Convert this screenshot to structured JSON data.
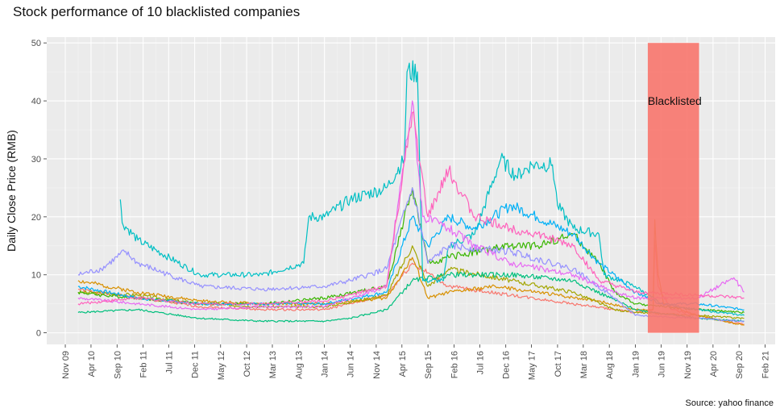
{
  "chart_data": {
    "type": "line",
    "title": "Stock performance of 10 blacklisted companies",
    "ylabel": "Daily Close Price (RMB)",
    "xlabel": "",
    "caption": "Source: yahoo finance",
    "ylim": [
      -2,
      51
    ],
    "yticks": [
      0,
      10,
      20,
      30,
      40,
      50
    ],
    "xlim": [
      "2009-07-15",
      "2021-04-01"
    ],
    "xticks": [
      {
        "label": "Nov 09",
        "date": "2009-11-01"
      },
      {
        "label": "Apr 10",
        "date": "2010-04-01"
      },
      {
        "label": "Sep 10",
        "date": "2010-09-01"
      },
      {
        "label": "Feb 11",
        "date": "2011-02-01"
      },
      {
        "label": "Jul 11",
        "date": "2011-07-01"
      },
      {
        "label": "Dec 11",
        "date": "2011-12-01"
      },
      {
        "label": "May 12",
        "date": "2012-05-01"
      },
      {
        "label": "Oct 12",
        "date": "2012-10-01"
      },
      {
        "label": "Mar 13",
        "date": "2013-03-01"
      },
      {
        "label": "Aug 13",
        "date": "2013-08-01"
      },
      {
        "label": "Jan 14",
        "date": "2014-01-01"
      },
      {
        "label": "Jun 14",
        "date": "2014-06-01"
      },
      {
        "label": "Nov 14",
        "date": "2014-11-01"
      },
      {
        "label": "Apr 15",
        "date": "2015-04-01"
      },
      {
        "label": "Sep 15",
        "date": "2015-09-01"
      },
      {
        "label": "Feb 16",
        "date": "2016-02-01"
      },
      {
        "label": "Jul 16",
        "date": "2016-07-01"
      },
      {
        "label": "Dec 16",
        "date": "2016-12-01"
      },
      {
        "label": "May 17",
        "date": "2017-05-01"
      },
      {
        "label": "Oct 17",
        "date": "2017-10-01"
      },
      {
        "label": "Mar 18",
        "date": "2018-03-01"
      },
      {
        "label": "Aug 18",
        "date": "2018-08-01"
      },
      {
        "label": "Jan 19",
        "date": "2019-01-01"
      },
      {
        "label": "Jun 19",
        "date": "2019-06-01"
      },
      {
        "label": "Nov 19",
        "date": "2019-11-01"
      },
      {
        "label": "Apr 20",
        "date": "2020-04-01"
      },
      {
        "label": "Sep 20",
        "date": "2020-09-01"
      },
      {
        "label": "Feb 21",
        "date": "2021-02-01"
      }
    ],
    "grid": true,
    "legend": "none",
    "annotation": {
      "label": "Blacklisted",
      "x_start": "2019-03-15",
      "x_end": "2020-01-10",
      "y_start": 0,
      "y_end": 50,
      "label_y": 40,
      "color": "#f8766d"
    },
    "series": [
      {
        "color": "#f8766d",
        "points": [
          [
            "2010-01-15",
            7.5
          ],
          [
            "2011-01-01",
            6.0
          ],
          [
            "2012-01-01",
            4.5
          ],
          [
            "2013-01-01",
            4.0
          ],
          [
            "2014-01-01",
            4.0
          ],
          [
            "2015-01-01",
            6.5
          ],
          [
            "2015-06-01",
            12.0
          ],
          [
            "2016-01-01",
            8.0
          ],
          [
            "2017-01-01",
            6.5
          ],
          [
            "2018-01-01",
            5.0
          ],
          [
            "2019-01-01",
            3.5
          ],
          [
            "2019-04-15",
            4.0
          ],
          [
            "2019-04-25",
            16.0
          ],
          [
            "2019-05-15",
            8.0
          ],
          [
            "2019-08-01",
            4.0
          ],
          [
            "2020-01-01",
            3.0
          ],
          [
            "2020-06-01",
            2.0
          ],
          [
            "2020-10-01",
            1.5
          ]
        ]
      },
      {
        "color": "#d89000",
        "points": [
          [
            "2010-01-15",
            9.0
          ],
          [
            "2011-01-01",
            7.0
          ],
          [
            "2012-01-01",
            5.5
          ],
          [
            "2013-01-01",
            5.0
          ],
          [
            "2014-01-01",
            5.0
          ],
          [
            "2015-01-01",
            6.0
          ],
          [
            "2015-06-01",
            13.0
          ],
          [
            "2015-09-01",
            6.0
          ],
          [
            "2016-01-01",
            7.0
          ],
          [
            "2016-10-01",
            8.0
          ],
          [
            "2017-06-01",
            7.0
          ],
          [
            "2018-06-01",
            5.5
          ],
          [
            "2019-01-01",
            4.0
          ],
          [
            "2019-04-15",
            4.0
          ],
          [
            "2019-04-25",
            19.5
          ],
          [
            "2019-05-01",
            16.0
          ],
          [
            "2019-05-15",
            10.0
          ],
          [
            "2019-06-15",
            5.0
          ],
          [
            "2020-01-01",
            3.0
          ],
          [
            "2020-10-01",
            1.3
          ]
        ]
      },
      {
        "color": "#a3a500",
        "points": [
          [
            "2010-01-15",
            7.0
          ],
          [
            "2011-01-01",
            6.5
          ],
          [
            "2012-01-01",
            5.0
          ],
          [
            "2013-01-01",
            4.5
          ],
          [
            "2014-01-01",
            4.5
          ],
          [
            "2015-01-01",
            6.5
          ],
          [
            "2015-06-01",
            15.0
          ],
          [
            "2015-09-01",
            8.0
          ],
          [
            "2016-01-01",
            11.0
          ],
          [
            "2017-01-01",
            9.0
          ],
          [
            "2018-01-01",
            7.0
          ],
          [
            "2018-09-01",
            4.0
          ],
          [
            "2019-01-01",
            3.5
          ],
          [
            "2020-01-01",
            3.0
          ],
          [
            "2020-10-01",
            2.5
          ]
        ]
      },
      {
        "color": "#39b600",
        "points": [
          [
            "2010-01-15",
            7.0
          ],
          [
            "2010-06-01",
            6.5
          ],
          [
            "2011-01-01",
            6.0
          ],
          [
            "2012-01-01",
            5.0
          ],
          [
            "2013-01-01",
            5.0
          ],
          [
            "2014-01-01",
            6.0
          ],
          [
            "2015-01-01",
            8.0
          ],
          [
            "2015-06-01",
            25.0
          ],
          [
            "2015-09-01",
            12.0
          ],
          [
            "2016-01-01",
            13.0
          ],
          [
            "2016-06-01",
            14.0
          ],
          [
            "2017-01-01",
            15.0
          ],
          [
            "2017-06-01",
            15.0
          ],
          [
            "2018-01-01",
            17.0
          ],
          [
            "2018-06-01",
            12.0
          ],
          [
            "2018-09-01",
            7.0
          ],
          [
            "2019-01-01",
            5.0
          ],
          [
            "2020-01-01",
            4.0
          ],
          [
            "2020-10-01",
            3.5
          ]
        ]
      },
      {
        "color": "#00bf7d",
        "points": [
          [
            "2010-01-15",
            3.5
          ],
          [
            "2011-01-01",
            4.0
          ],
          [
            "2012-01-01",
            2.5
          ],
          [
            "2013-01-01",
            2.0
          ],
          [
            "2014-01-01",
            2.0
          ],
          [
            "2014-06-01",
            2.5
          ],
          [
            "2015-01-01",
            4.0
          ],
          [
            "2015-06-01",
            9.0
          ],
          [
            "2016-01-01",
            10.0
          ],
          [
            "2017-01-01",
            10.0
          ],
          [
            "2018-01-01",
            9.0
          ],
          [
            "2019-01-01",
            4.0
          ],
          [
            "2020-01-01",
            2.5
          ],
          [
            "2020-10-01",
            2.0
          ]
        ]
      },
      {
        "color": "#00bfc4",
        "points": [
          [
            "2010-09-20",
            23.0
          ],
          [
            "2010-10-01",
            19.0
          ],
          [
            "2011-01-01",
            16.0
          ],
          [
            "2012-01-01",
            10.0
          ],
          [
            "2012-06-01",
            10.0
          ],
          [
            "2013-01-01",
            10.0
          ],
          [
            "2013-09-01",
            12.0
          ],
          [
            "2013-10-01",
            20.0
          ],
          [
            "2014-01-01",
            20.0
          ],
          [
            "2014-06-01",
            23.0
          ],
          [
            "2015-01-01",
            25.0
          ],
          [
            "2015-04-15",
            30.0
          ],
          [
            "2015-05-01",
            45.0
          ],
          [
            "2015-07-01",
            45.0
          ],
          [
            "2015-08-01",
            9.0
          ],
          [
            "2015-12-01",
            9.0
          ],
          [
            "2016-01-01",
            15.0
          ],
          [
            "2016-06-01",
            17.0
          ],
          [
            "2016-11-01",
            30.0
          ],
          [
            "2017-02-01",
            27.0
          ],
          [
            "2017-05-01",
            29.0
          ],
          [
            "2017-09-01",
            29.0
          ],
          [
            "2017-10-01",
            22.0
          ],
          [
            "2018-01-01",
            18.0
          ],
          [
            "2018-06-01",
            17.0
          ],
          [
            "2018-07-01",
            10.0
          ],
          [
            "2019-01-01",
            8.0
          ],
          [
            "2019-06-01",
            5.0
          ],
          [
            "2020-01-01",
            4.0
          ],
          [
            "2020-10-01",
            3.0
          ]
        ]
      },
      {
        "color": "#00b0f6",
        "points": [
          [
            "2010-01-15",
            8.0
          ],
          [
            "2011-01-01",
            6.0
          ],
          [
            "2012-01-01",
            5.0
          ],
          [
            "2013-01-01",
            5.0
          ],
          [
            "2014-01-01",
            5.0
          ],
          [
            "2015-01-01",
            7.0
          ],
          [
            "2015-06-01",
            20.0
          ],
          [
            "2015-09-01",
            15.0
          ],
          [
            "2016-01-01",
            20.0
          ],
          [
            "2016-06-01",
            18.0
          ],
          [
            "2017-01-01",
            22.0
          ],
          [
            "2017-06-01",
            20.0
          ],
          [
            "2018-01-01",
            17.0
          ],
          [
            "2018-06-01",
            12.0
          ],
          [
            "2019-01-01",
            7.0
          ],
          [
            "2019-06-01",
            5.0
          ],
          [
            "2020-01-01",
            5.0
          ],
          [
            "2020-10-01",
            4.0
          ]
        ]
      },
      {
        "color": "#9590ff",
        "points": [
          [
            "2010-01-15",
            10.0
          ],
          [
            "2010-06-01",
            11.0
          ],
          [
            "2010-10-15",
            14.0
          ],
          [
            "2011-01-01",
            12.0
          ],
          [
            "2012-01-01",
            8.0
          ],
          [
            "2013-01-01",
            7.5
          ],
          [
            "2014-01-01",
            8.0
          ],
          [
            "2014-06-01",
            9.0
          ],
          [
            "2015-01-01",
            11.0
          ],
          [
            "2015-06-01",
            25.0
          ],
          [
            "2015-09-01",
            12.0
          ],
          [
            "2016-01-01",
            15.0
          ],
          [
            "2017-01-01",
            14.0
          ],
          [
            "2018-01-01",
            11.0
          ],
          [
            "2018-09-01",
            6.0
          ],
          [
            "2019-01-01",
            3.0
          ],
          [
            "2020-01-01",
            2.5
          ],
          [
            "2020-10-01",
            2.0
          ]
        ]
      },
      {
        "color": "#e76bf3",
        "points": [
          [
            "2010-01-15",
            6.0
          ],
          [
            "2011-01-01",
            5.0
          ],
          [
            "2012-01-01",
            4.0
          ],
          [
            "2013-01-01",
            4.5
          ],
          [
            "2014-01-01",
            4.5
          ],
          [
            "2015-01-01",
            8.0
          ],
          [
            "2015-06-01",
            40.0
          ],
          [
            "2015-08-01",
            20.0
          ],
          [
            "2016-01-01",
            18.0
          ],
          [
            "2016-06-01",
            15.0
          ],
          [
            "2017-01-01",
            12.0
          ],
          [
            "2018-01-01",
            10.0
          ],
          [
            "2018-09-01",
            7.0
          ],
          [
            "2019-01-01",
            6.0
          ],
          [
            "2020-01-01",
            6.0
          ],
          [
            "2020-08-01",
            9.5
          ],
          [
            "2020-10-01",
            7.0
          ]
        ]
      },
      {
        "color": "#ff62bc",
        "points": [
          [
            "2010-01-15",
            5.0
          ],
          [
            "2011-01-01",
            6.0
          ],
          [
            "2012-01-01",
            5.0
          ],
          [
            "2013-01-01",
            5.0
          ],
          [
            "2014-01-01",
            5.5
          ],
          [
            "2015-01-01",
            8.0
          ],
          [
            "2015-06-01",
            38.0
          ],
          [
            "2015-09-01",
            20.0
          ],
          [
            "2016-01-01",
            28.0
          ],
          [
            "2016-06-01",
            20.0
          ],
          [
            "2017-01-01",
            18.0
          ],
          [
            "2017-06-01",
            17.0
          ],
          [
            "2018-01-01",
            15.0
          ],
          [
            "2018-06-01",
            9.0
          ],
          [
            "2019-01-01",
            7.0
          ],
          [
            "2020-01-01",
            6.5
          ],
          [
            "2020-10-01",
            6.0
          ]
        ]
      }
    ]
  }
}
